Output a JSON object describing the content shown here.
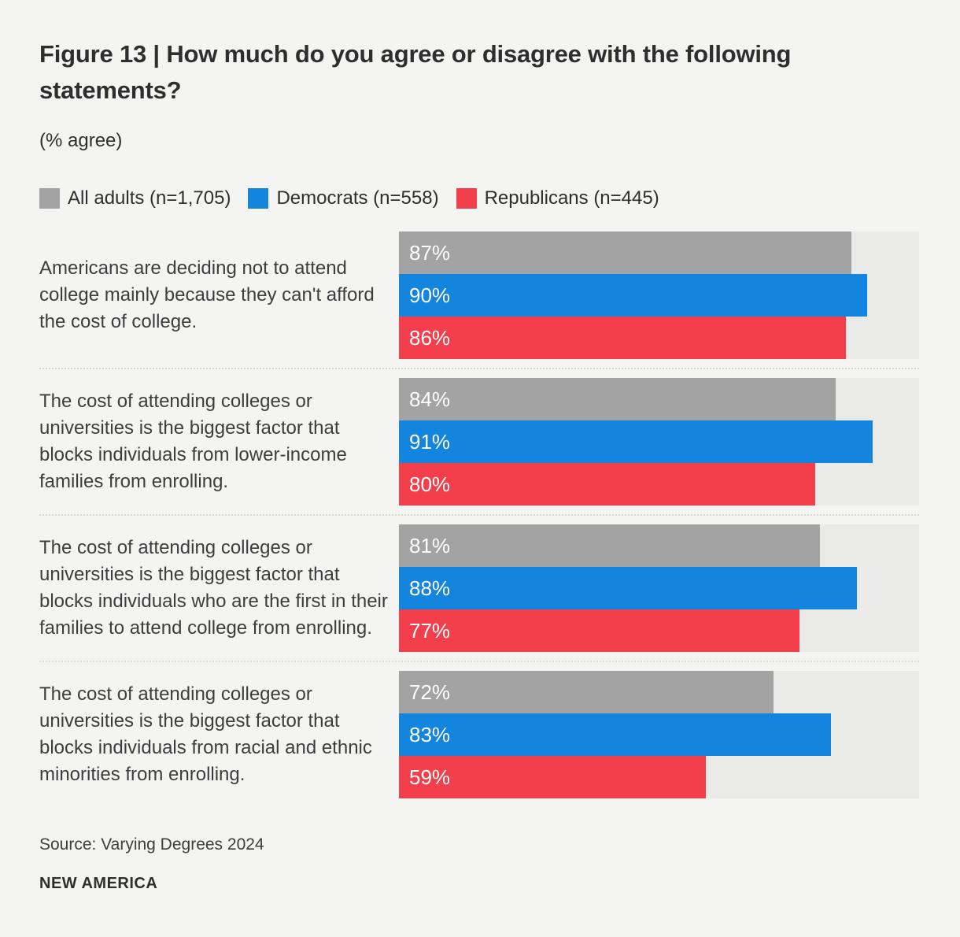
{
  "header": {
    "title": "Figure 13 | How much do you agree or disagree with the following statements?",
    "subtitle": "(% agree)"
  },
  "colors": {
    "background": "#f4f4f3",
    "track": "#eaeae9",
    "divider": "#d8d8d7",
    "heading_text": "#2e2e2e",
    "body_text": "#3d3d3d",
    "bar_value_text": "#ffffff"
  },
  "chart_data": {
    "type": "bar",
    "orientation": "horizontal",
    "unit": "% agree",
    "xlim": [
      0,
      100
    ],
    "grid": false,
    "legend_position": "top",
    "value_labels": "inside-left",
    "categories": [
      "Americans are deciding not to attend college mainly because they can't afford the cost of college.",
      "The cost of attending colleges or universities is the biggest factor that blocks individuals from lower-income families from enrolling.",
      "The cost of attending colleges or universities is the biggest factor that blocks individuals who are the first in their families to attend college from enrolling.",
      "The cost of attending colleges or universities is the biggest factor that blocks individuals from racial and ethnic minorities from enrolling."
    ],
    "series": [
      {
        "name": "All adults (n=1,705)",
        "color": "#a3a3a3",
        "values": [
          87,
          84,
          81,
          72
        ],
        "labels": [
          "87%",
          "84%",
          "81%",
          "72%"
        ]
      },
      {
        "name": "Democrats (n=558)",
        "color": "#1385df",
        "values": [
          90,
          91,
          88,
          83
        ],
        "labels": [
          "90%",
          "91%",
          "88%",
          "83%"
        ]
      },
      {
        "name": "Republicans (n=445)",
        "color": "#f33f4b",
        "values": [
          86,
          80,
          77,
          59
        ],
        "labels": [
          "86%",
          "80%",
          "77%",
          "59%"
        ]
      }
    ]
  },
  "footer": {
    "source": "Source: Varying Degrees 2024",
    "brand": "NEW AMERICA"
  }
}
